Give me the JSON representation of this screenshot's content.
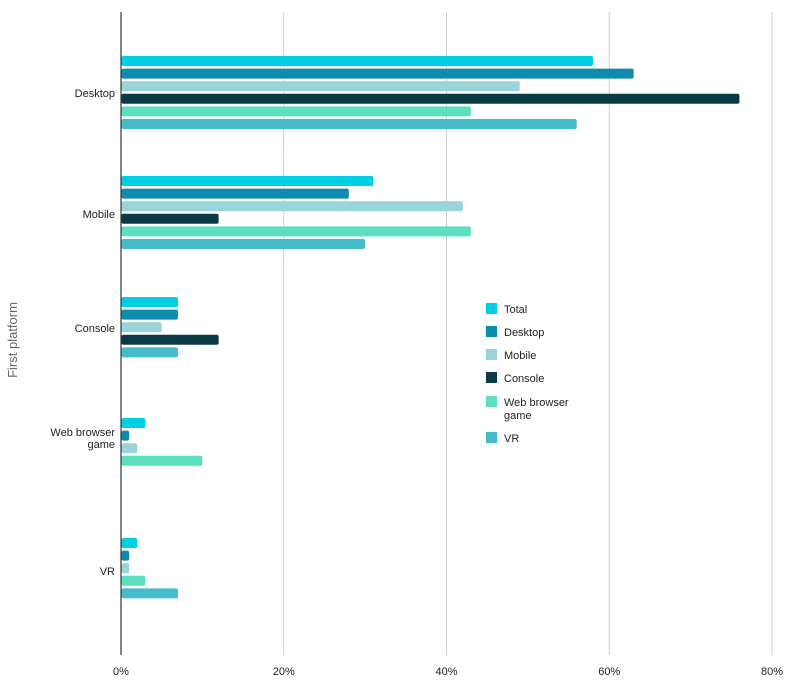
{
  "chart_data": {
    "type": "bar",
    "orientation": "horizontal",
    "ylabel": "First platform",
    "xlabel": "",
    "xlim": [
      0,
      80
    ],
    "x_ticks": [
      0,
      20,
      40,
      60,
      80
    ],
    "x_tick_labels": [
      "0%",
      "20%",
      "40%",
      "60%",
      "80%"
    ],
    "grid": true,
    "legend_position": "right",
    "categories": [
      [
        "Desktop"
      ],
      [
        "Mobile"
      ],
      [
        "Console"
      ],
      [
        "Web browser",
        "game"
      ],
      [
        "VR"
      ]
    ],
    "series": [
      {
        "name": "Total",
        "color": "#00CFE3",
        "values": [
          58,
          31,
          7,
          3,
          2
        ]
      },
      {
        "name": "Desktop",
        "color": "#0E8AAE",
        "values": [
          63,
          28,
          7,
          1,
          1
        ]
      },
      {
        "name": "Mobile",
        "color": "#9AD3D9",
        "values": [
          49,
          42,
          5,
          2,
          1
        ]
      },
      {
        "name": "Console",
        "color": "#0B3A47",
        "values": [
          76,
          12,
          12,
          null,
          null
        ]
      },
      {
        "name": "Web browser game",
        "legend_lines": [
          "Web browser",
          "game"
        ],
        "color": "#5EDFC0",
        "values": [
          43,
          43,
          null,
          10,
          3
        ]
      },
      {
        "name": "VR",
        "color": "#45BCC8",
        "values": [
          56,
          30,
          7,
          null,
          7
        ]
      }
    ]
  }
}
